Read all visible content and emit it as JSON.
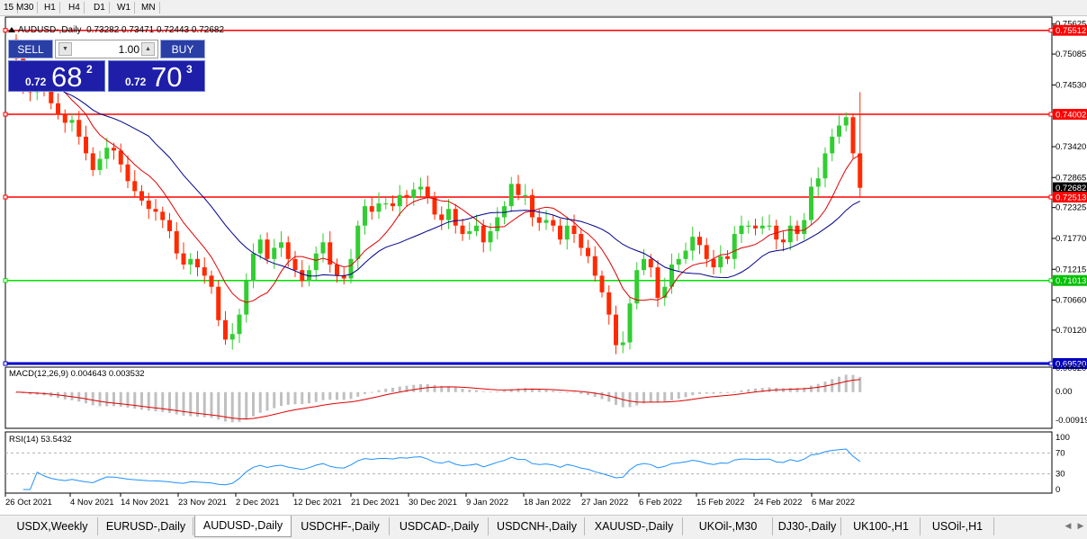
{
  "toolbar": {
    "timeframes": [
      "15",
      "M30",
      "H1",
      "H4",
      "D1",
      "W1",
      "MN"
    ]
  },
  "chart_header": "AUDUSD-,Daily  0.73282 0.73471 0.72443 0.72682",
  "trade_panel": {
    "sell_label": "SELL",
    "buy_label": "BUY",
    "quantity": "1.00",
    "sell_price": {
      "prefix": "0.72",
      "big": "68",
      "sup": "2"
    },
    "buy_price": {
      "prefix": "0.72",
      "big": "70",
      "sup": "3"
    }
  },
  "price_axis": [
    "0.75625",
    "0.75085",
    "0.74530",
    "0.73420",
    "0.72865",
    "0.72325",
    "0.71770",
    "0.71215",
    "0.70660",
    "0.70120"
  ],
  "level_tags": [
    {
      "value": "0.75512",
      "color": "#ff0000"
    },
    {
      "value": "0.74002",
      "color": "#ff0000"
    },
    {
      "value": "0.72682",
      "color": "#000000"
    },
    {
      "value": "0.72513",
      "color": "#ff0000"
    },
    {
      "value": "0.71013",
      "color": "#00c000"
    },
    {
      "value": "0.69520",
      "color": "#0000c0"
    }
  ],
  "macd": {
    "label": "MACD(12,26,9) 0.004643 0.003532",
    "axis": [
      "0.006201",
      "0.00",
      "-0.00919"
    ]
  },
  "rsi": {
    "label": "RSI(14) 53.5432",
    "axis": [
      "100",
      "70",
      "30",
      "0"
    ]
  },
  "dates": [
    "26 Oct 2021",
    "4 Nov 2021",
    "14 Nov 2021",
    "23 Nov 2021",
    "2 Dec 2021",
    "12 Dec 2021",
    "21 Dec 2021",
    "30 Dec 2021",
    "9 Jan 2022",
    "18 Jan 2022",
    "27 Jan 2022",
    "6 Feb 2022",
    "15 Feb 2022",
    "24 Feb 2022",
    "6 Mar 2022"
  ],
  "tabs": [
    "USDX,Weekly",
    "EURUSD-,Daily",
    "AUDUSD-,Daily",
    "USDCHF-,Daily",
    "USDCAD-,Daily",
    "USDCNH-,Daily",
    "XAUUSD-,Daily",
    "UKOil-,M30",
    "DJ30-,Daily",
    "UK100-,H1",
    "USOil-,H1"
  ],
  "active_tab": 2,
  "colors": {
    "bull": "#32cd32",
    "bear": "#ff2a00",
    "ma_fast": "#e00000",
    "ma_slow": "#00008b",
    "rsi": "#1e90ff",
    "macd_signal": "#e00000"
  },
  "chart_data": {
    "type": "candlestick",
    "x_dates": [
      "26 Oct 2021",
      "4 Nov 2021",
      "14 Nov 2021",
      "23 Nov 2021",
      "2 Dec 2021",
      "12 Dec 2021",
      "21 Dec 2021",
      "30 Dec 2021",
      "9 Jan 2022",
      "18 Jan 2022",
      "27 Jan 2022",
      "6 Feb 2022",
      "15 Feb 2022",
      "24 Feb 2022",
      "6 Mar 2022"
    ],
    "ylim": [
      0.6952,
      0.7575
    ],
    "horizontal_levels": [
      0.75512,
      0.74002,
      0.72513,
      0.71013,
      0.6952
    ],
    "last_price": 0.72682,
    "close_series": [
      0.75,
      0.7455,
      0.744,
      0.747,
      0.7445,
      0.742,
      0.74,
      0.7385,
      0.739,
      0.736,
      0.733,
      0.73,
      0.732,
      0.734,
      0.7335,
      0.731,
      0.728,
      0.7262,
      0.7245,
      0.723,
      0.7225,
      0.721,
      0.719,
      0.715,
      0.713,
      0.714,
      0.7125,
      0.711,
      0.709,
      0.703,
      0.6995,
      0.7005,
      0.704,
      0.71,
      0.715,
      0.7175,
      0.714,
      0.716,
      0.717,
      0.714,
      0.712,
      0.71,
      0.712,
      0.715,
      0.717,
      0.713,
      0.711,
      0.7105,
      0.714,
      0.72,
      0.7235,
      0.7225,
      0.724,
      0.724,
      0.7235,
      0.7255,
      0.725,
      0.7265,
      0.727,
      0.725,
      0.722,
      0.721,
      0.723,
      0.72,
      0.7185,
      0.719,
      0.72,
      0.717,
      0.719,
      0.7215,
      0.7235,
      0.7275,
      0.7255,
      0.7255,
      0.7215,
      0.7205,
      0.721,
      0.72,
      0.7175,
      0.72,
      0.7185,
      0.716,
      0.7145,
      0.711,
      0.708,
      0.704,
      0.6985,
      0.699,
      0.706,
      0.712,
      0.714,
      0.7125,
      0.707,
      0.709,
      0.713,
      0.714,
      0.7155,
      0.718,
      0.7165,
      0.714,
      0.7125,
      0.7145,
      0.714,
      0.7185,
      0.72,
      0.72,
      0.7195,
      0.72,
      0.72,
      0.7175,
      0.717,
      0.72,
      0.7185,
      0.721,
      0.727,
      0.7285,
      0.733,
      0.736,
      0.738,
      0.7395,
      0.733,
      0.7268
    ],
    "macd_axis": [
      0.006201,
      0.0,
      -0.00919
    ],
    "macd_last": 0.004643,
    "signal_last": 0.003532,
    "rsi_period": 14,
    "rsi_last": 53.5432,
    "rsi_levels": [
      70,
      30
    ]
  }
}
